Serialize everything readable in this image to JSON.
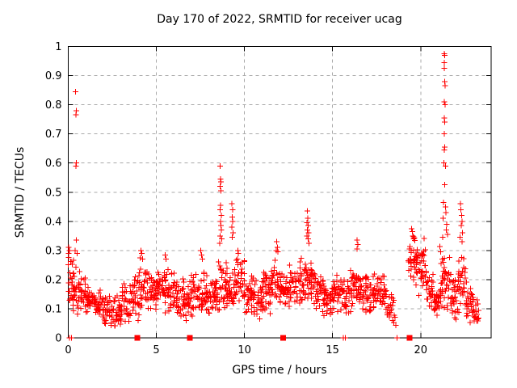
{
  "chart_data": {
    "type": "scatter",
    "title": "Day 170 of 2022, SRMTID for receiver ucag",
    "xlabel": "GPS time / hours",
    "ylabel": "SRMTID / TECUs",
    "xlim": [
      0,
      24
    ],
    "ylim": [
      0,
      1
    ],
    "xticks": [
      0,
      5,
      10,
      15,
      20
    ],
    "yticks": [
      0,
      0.1,
      0.2,
      0.3,
      0.4,
      0.5,
      0.6,
      0.7,
      0.8,
      0.9,
      1
    ],
    "grid": true,
    "legend": "none",
    "marker": "plus",
    "colors": {
      "points": "#ff0000",
      "grid": "#a9a9a9",
      "axis": "#000000",
      "background": "#ffffff",
      "text": "#000000"
    },
    "series_name": "SRMTID",
    "random_seed": 20220170,
    "baseline_segments": [
      [
        0.0,
        0.3,
        0.19,
        0.07,
        26
      ],
      [
        0.3,
        0.65,
        0.16,
        0.06,
        22
      ],
      [
        0.65,
        1.0,
        0.15,
        0.05,
        26
      ],
      [
        1.0,
        1.5,
        0.125,
        0.04,
        34
      ],
      [
        1.5,
        2.0,
        0.105,
        0.04,
        34
      ],
      [
        2.0,
        2.5,
        0.09,
        0.04,
        34
      ],
      [
        2.5,
        3.0,
        0.095,
        0.045,
        34
      ],
      [
        3.0,
        3.5,
        0.125,
        0.05,
        34
      ],
      [
        3.5,
        4.0,
        0.14,
        0.055,
        34
      ],
      [
        4.0,
        4.5,
        0.17,
        0.06,
        34
      ],
      [
        4.5,
        5.0,
        0.16,
        0.055,
        34
      ],
      [
        5.0,
        5.5,
        0.17,
        0.055,
        34
      ],
      [
        5.5,
        6.0,
        0.155,
        0.055,
        34
      ],
      [
        6.0,
        6.5,
        0.135,
        0.05,
        34
      ],
      [
        6.5,
        7.0,
        0.125,
        0.05,
        34
      ],
      [
        7.0,
        7.5,
        0.15,
        0.055,
        34
      ],
      [
        7.5,
        8.0,
        0.155,
        0.055,
        34
      ],
      [
        8.0,
        8.5,
        0.145,
        0.05,
        34
      ],
      [
        8.5,
        9.0,
        0.185,
        0.065,
        34
      ],
      [
        9.0,
        9.5,
        0.175,
        0.06,
        34
      ],
      [
        9.5,
        10.0,
        0.185,
        0.06,
        34
      ],
      [
        10.0,
        10.5,
        0.15,
        0.05,
        34
      ],
      [
        10.5,
        11.0,
        0.135,
        0.05,
        34
      ],
      [
        11.0,
        11.5,
        0.15,
        0.055,
        34
      ],
      [
        11.5,
        12.0,
        0.185,
        0.06,
        34
      ],
      [
        12.0,
        12.5,
        0.165,
        0.055,
        34
      ],
      [
        12.5,
        13.0,
        0.175,
        0.055,
        34
      ],
      [
        13.0,
        13.5,
        0.205,
        0.065,
        34
      ],
      [
        13.5,
        14.0,
        0.195,
        0.065,
        34
      ],
      [
        14.0,
        14.5,
        0.155,
        0.05,
        34
      ],
      [
        14.5,
        15.0,
        0.13,
        0.05,
        34
      ],
      [
        15.0,
        15.5,
        0.15,
        0.05,
        34
      ],
      [
        15.5,
        16.0,
        0.15,
        0.05,
        34
      ],
      [
        16.0,
        16.5,
        0.165,
        0.055,
        34
      ],
      [
        16.5,
        17.0,
        0.155,
        0.055,
        34
      ],
      [
        17.0,
        17.5,
        0.15,
        0.05,
        34
      ],
      [
        17.5,
        18.0,
        0.17,
        0.06,
        30
      ],
      [
        18.0,
        18.6,
        0.11,
        0.055,
        26
      ],
      [
        19.3,
        19.8,
        0.26,
        0.07,
        36
      ],
      [
        19.8,
        20.3,
        0.24,
        0.07,
        36
      ],
      [
        20.3,
        20.7,
        0.17,
        0.055,
        28
      ],
      [
        20.7,
        21.1,
        0.12,
        0.05,
        26
      ],
      [
        21.1,
        21.7,
        0.2,
        0.08,
        44
      ],
      [
        21.7,
        22.1,
        0.135,
        0.055,
        28
      ],
      [
        22.1,
        22.6,
        0.185,
        0.075,
        36
      ],
      [
        22.6,
        23.0,
        0.115,
        0.05,
        26
      ],
      [
        23.0,
        23.3,
        0.085,
        0.04,
        18
      ]
    ],
    "spike_points": [
      [
        0.03,
        0.31
      ],
      [
        0.06,
        0.3
      ],
      [
        0.02,
        0.29
      ],
      [
        0.42,
        0.845
      ],
      [
        0.45,
        0.78
      ],
      [
        0.44,
        0.765
      ],
      [
        0.46,
        0.6
      ],
      [
        0.44,
        0.59
      ],
      [
        0.45,
        0.335
      ],
      [
        0.38,
        0.3
      ],
      [
        0.5,
        0.29
      ],
      [
        4.12,
        0.3
      ],
      [
        4.18,
        0.29
      ],
      [
        4.08,
        0.275
      ],
      [
        4.22,
        0.27
      ],
      [
        5.5,
        0.285
      ],
      [
        5.55,
        0.27
      ],
      [
        7.52,
        0.3
      ],
      [
        7.57,
        0.285
      ],
      [
        7.6,
        0.27
      ],
      [
        8.62,
        0.59
      ],
      [
        8.64,
        0.545
      ],
      [
        8.66,
        0.535
      ],
      [
        8.63,
        0.52
      ],
      [
        8.67,
        0.505
      ],
      [
        8.65,
        0.455
      ],
      [
        8.61,
        0.44
      ],
      [
        8.68,
        0.42
      ],
      [
        8.64,
        0.4
      ],
      [
        8.66,
        0.385
      ],
      [
        8.69,
        0.37
      ],
      [
        8.62,
        0.35
      ],
      [
        8.7,
        0.34
      ],
      [
        8.6,
        0.325
      ],
      [
        9.28,
        0.46
      ],
      [
        9.32,
        0.44
      ],
      [
        9.3,
        0.415
      ],
      [
        9.34,
        0.4
      ],
      [
        9.29,
        0.38
      ],
      [
        9.35,
        0.36
      ],
      [
        9.31,
        0.345
      ],
      [
        9.62,
        0.3
      ],
      [
        9.65,
        0.29
      ],
      [
        11.83,
        0.33
      ],
      [
        11.87,
        0.31
      ],
      [
        11.8,
        0.3
      ],
      [
        11.9,
        0.295
      ],
      [
        13.57,
        0.435
      ],
      [
        13.6,
        0.41
      ],
      [
        13.55,
        0.395
      ],
      [
        13.62,
        0.385
      ],
      [
        13.58,
        0.37
      ],
      [
        13.64,
        0.36
      ],
      [
        13.54,
        0.35
      ],
      [
        13.61,
        0.34
      ],
      [
        13.66,
        0.325
      ],
      [
        16.4,
        0.335
      ],
      [
        16.43,
        0.32
      ],
      [
        16.38,
        0.305
      ],
      [
        19.48,
        0.375
      ],
      [
        19.52,
        0.365
      ],
      [
        19.55,
        0.35
      ],
      [
        19.6,
        0.34
      ],
      [
        21.33,
        0.975
      ],
      [
        21.37,
        0.97
      ],
      [
        21.35,
        0.945
      ],
      [
        21.34,
        0.925
      ],
      [
        21.36,
        0.88
      ],
      [
        21.38,
        0.865
      ],
      [
        21.33,
        0.81
      ],
      [
        21.39,
        0.8
      ],
      [
        21.35,
        0.755
      ],
      [
        21.36,
        0.74
      ],
      [
        21.34,
        0.7
      ],
      [
        21.37,
        0.655
      ],
      [
        21.35,
        0.645
      ],
      [
        21.32,
        0.6
      ],
      [
        21.4,
        0.59
      ],
      [
        21.36,
        0.525
      ],
      [
        21.3,
        0.465
      ],
      [
        21.42,
        0.45
      ],
      [
        21.44,
        0.43
      ],
      [
        21.28,
        0.41
      ],
      [
        21.48,
        0.39
      ],
      [
        21.46,
        0.37
      ],
      [
        21.52,
        0.355
      ],
      [
        21.26,
        0.345
      ],
      [
        22.25,
        0.46
      ],
      [
        22.28,
        0.44
      ],
      [
        22.32,
        0.42
      ],
      [
        22.35,
        0.4
      ],
      [
        22.3,
        0.385
      ],
      [
        22.38,
        0.36
      ],
      [
        22.24,
        0.345
      ],
      [
        22.36,
        0.33
      ]
    ],
    "zero_markers": {
      "plus": [
        0.08,
        0.18,
        15.62,
        15.72,
        18.65
      ],
      "square": [
        3.92,
        6.9,
        12.2,
        19.38
      ]
    }
  }
}
